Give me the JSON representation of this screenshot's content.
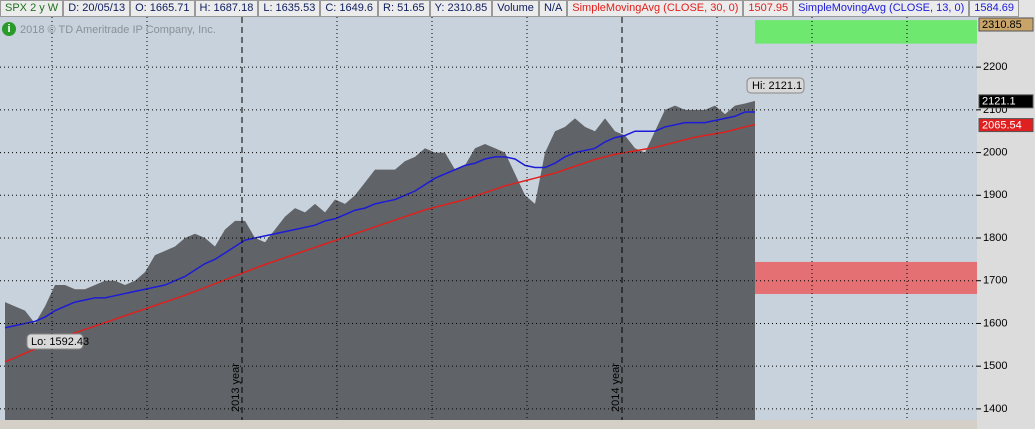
{
  "chart_data": {
    "type": "area",
    "header_fields": [
      "D: 20/05/13",
      "O: 1665.71",
      "H: 1687.18",
      "L: 1635.53",
      "C: 1649.6",
      "R: 51.65",
      "Y: 2310.85",
      "Volume",
      "N/A"
    ],
    "watermark": "2018 © TD Ameritrade IP Company, Inc.",
    "annotations": {
      "hi": "Hi: 2121.1",
      "lo": "Lo: 1592.43",
      "year1": "2013 year",
      "year2": "2014 year"
    },
    "series": [
      {
        "name": "SPX 2 y W",
        "color": "#606368",
        "values": [
          1650,
          1640,
          1630,
          1600,
          1640,
          1690,
          1690,
          1680,
          1680,
          1690,
          1700,
          1700,
          1690,
          1700,
          1720,
          1760,
          1770,
          1780,
          1800,
          1810,
          1800,
          1780,
          1820,
          1840,
          1840,
          1800,
          1790,
          1820,
          1850,
          1870,
          1860,
          1880,
          1860,
          1890,
          1880,
          1900,
          1930,
          1960,
          1960,
          1960,
          1980,
          1990,
          2010,
          2000,
          2000,
          1960,
          1970,
          2010,
          2020,
          2010,
          2000,
          1950,
          1900,
          1880,
          2000,
          2050,
          2060,
          2080,
          2060,
          2050,
          2080,
          2050,
          2040,
          2010,
          2000,
          2050,
          2100,
          2110,
          2100,
          2100,
          2100,
          2110,
          2090,
          2110,
          2115,
          2121.1
        ]
      },
      {
        "name": "SimpleMovingAvg (CLOSE, 30, 0)",
        "color": "#e0201c",
        "current": 1507.95,
        "values": [
          1510,
          1520,
          1530,
          1540,
          1550,
          1560,
          1570,
          1578,
          1586,
          1594,
          1602,
          1610,
          1618,
          1626,
          1634,
          1642,
          1650,
          1658,
          1666,
          1675,
          1684,
          1693,
          1702,
          1711,
          1720,
          1729,
          1738,
          1746,
          1754,
          1762,
          1770,
          1778,
          1786,
          1794,
          1802,
          1810,
          1818,
          1826,
          1834,
          1842,
          1850,
          1858,
          1866,
          1872,
          1878,
          1884,
          1890,
          1898,
          1906,
          1914,
          1922,
          1928,
          1934,
          1940,
          1946,
          1952,
          1960,
          1968,
          1976,
          1984,
          1990,
          1996,
          2000,
          2004,
          2008,
          2012,
          2018,
          2024,
          2030,
          2036,
          2040,
          2044,
          2048,
          2054,
          2060,
          2065.54
        ]
      },
      {
        "name": "SimpleMovingAvg (CLOSE, 13, 0)",
        "color": "#1c1cd8",
        "current": 1584.69,
        "values": [
          1590,
          1595,
          1600,
          1605,
          1615,
          1630,
          1640,
          1650,
          1655,
          1660,
          1660,
          1665,
          1670,
          1675,
          1680,
          1685,
          1690,
          1700,
          1710,
          1725,
          1740,
          1750,
          1765,
          1780,
          1795,
          1800,
          1805,
          1810,
          1815,
          1820,
          1825,
          1830,
          1840,
          1845,
          1855,
          1865,
          1870,
          1880,
          1885,
          1890,
          1900,
          1910,
          1925,
          1940,
          1950,
          1960,
          1970,
          1975,
          1985,
          1990,
          1990,
          1985,
          1970,
          1965,
          1965,
          1975,
          1990,
          2000,
          2005,
          2010,
          2025,
          2035,
          2040,
          2050,
          2050,
          2050,
          2060,
          2065,
          2070,
          2070,
          2070,
          2075,
          2080,
          2085,
          2095,
          2095
        ]
      }
    ],
    "bands": [
      {
        "from": 2255,
        "to": 2310,
        "color": "#6ee86e"
      },
      {
        "from": 1669,
        "to": 1744,
        "color": "#e47074"
      }
    ],
    "axis_markers": [
      {
        "value": 2310.85,
        "bg": "#c8a468",
        "color": "#000000"
      },
      {
        "value": 2121.1,
        "bg": "#000000",
        "color": "#ffffff"
      },
      {
        "value": 2065.54,
        "bg": "#e02020",
        "color": "#ffffff"
      }
    ],
    "ylim": [
      1374,
      2315
    ],
    "yticks": [
      1400,
      1500,
      1600,
      1700,
      1800,
      1900,
      2000,
      2100,
      2200
    ],
    "grid": true
  }
}
